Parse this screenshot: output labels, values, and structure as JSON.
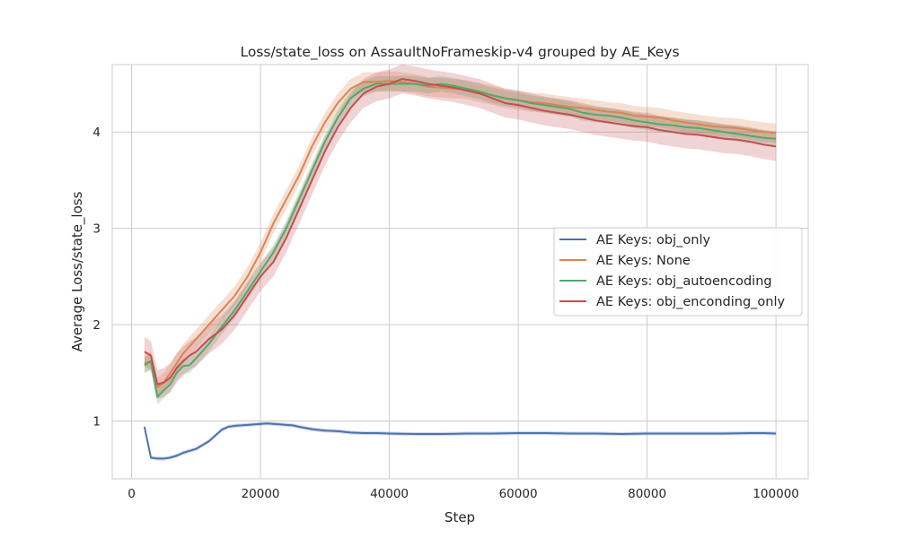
{
  "chart_data": {
    "type": "line",
    "title": "Loss/state_loss on AssaultNoFrameskip-v4 grouped by AE_Keys",
    "xlabel": "Step",
    "ylabel": "Average Loss/state_loss",
    "xlim": [
      -3000,
      105000
    ],
    "ylim": [
      0.4,
      4.7
    ],
    "xticks": [
      0,
      20000,
      40000,
      60000,
      80000,
      100000
    ],
    "xtick_labels": [
      "0",
      "20000",
      "40000",
      "60000",
      "80000",
      "100000"
    ],
    "yticks": [
      1,
      2,
      3,
      4
    ],
    "ytick_labels": [
      "1",
      "2",
      "3",
      "4"
    ],
    "grid": true,
    "legend_position": "center-right",
    "series": [
      {
        "name": "AE Keys: obj_only",
        "color": "#4c72b0",
        "band": 0.02,
        "x": [
          2000,
          3000,
          4000,
          5000,
          6000,
          7000,
          8000,
          9000,
          10000,
          12000,
          14000,
          15000,
          16000,
          18000,
          20000,
          21000,
          22000,
          23000,
          24000,
          25000,
          26000,
          28000,
          30000,
          32000,
          34000,
          36000,
          38000,
          40000,
          44000,
          48000,
          52000,
          56000,
          60000,
          64000,
          68000,
          72000,
          76000,
          80000,
          84000,
          88000,
          92000,
          96000,
          98000,
          100000
        ],
        "y": [
          0.94,
          0.62,
          0.61,
          0.61,
          0.62,
          0.64,
          0.67,
          0.69,
          0.71,
          0.79,
          0.91,
          0.94,
          0.95,
          0.96,
          0.97,
          0.975,
          0.97,
          0.965,
          0.96,
          0.955,
          0.94,
          0.915,
          0.9,
          0.895,
          0.88,
          0.875,
          0.875,
          0.87,
          0.865,
          0.865,
          0.87,
          0.87,
          0.875,
          0.875,
          0.87,
          0.87,
          0.865,
          0.87,
          0.87,
          0.87,
          0.87,
          0.875,
          0.875,
          0.87
        ]
      },
      {
        "name": "AE Keys: None",
        "color": "#dd8452",
        "band": 0.1,
        "x": [
          2000,
          3000,
          4000,
          5000,
          6000,
          8000,
          10000,
          12000,
          14000,
          16000,
          18000,
          20000,
          22000,
          24000,
          26000,
          28000,
          30000,
          32000,
          34000,
          36000,
          38000,
          40000,
          42000,
          44000,
          46000,
          48000,
          50000,
          52000,
          54000,
          56000,
          58000,
          60000,
          62000,
          64000,
          66000,
          68000,
          70000,
          72000,
          74000,
          76000,
          78000,
          80000,
          82000,
          84000,
          86000,
          88000,
          90000,
          92000,
          94000,
          96000,
          98000,
          100000
        ],
        "y": [
          1.6,
          1.62,
          1.35,
          1.4,
          1.5,
          1.7,
          1.85,
          2.0,
          2.15,
          2.3,
          2.5,
          2.75,
          3.05,
          3.3,
          3.55,
          3.85,
          4.1,
          4.3,
          4.45,
          4.52,
          4.52,
          4.53,
          4.52,
          4.5,
          4.47,
          4.46,
          4.45,
          4.44,
          4.41,
          4.38,
          4.35,
          4.33,
          4.31,
          4.3,
          4.28,
          4.26,
          4.25,
          4.23,
          4.21,
          4.2,
          4.17,
          4.16,
          4.15,
          4.12,
          4.1,
          4.08,
          4.06,
          4.05,
          4.04,
          4.02,
          4.0,
          3.99
        ]
      },
      {
        "name": "AE Keys: obj_autoencoding",
        "color": "#55a868",
        "band": 0.08,
        "x": [
          2000,
          3000,
          4000,
          5000,
          6000,
          7000,
          8000,
          9000,
          10000,
          12000,
          14000,
          16000,
          18000,
          20000,
          22000,
          24000,
          26000,
          28000,
          30000,
          32000,
          34000,
          36000,
          38000,
          40000,
          42000,
          44000,
          46000,
          48000,
          50000,
          52000,
          54000,
          56000,
          58000,
          60000,
          62000,
          64000,
          66000,
          68000,
          70000,
          72000,
          74000,
          76000,
          78000,
          80000,
          82000,
          84000,
          86000,
          88000,
          90000,
          92000,
          94000,
          96000,
          98000,
          100000
        ],
        "y": [
          1.58,
          1.62,
          1.25,
          1.32,
          1.38,
          1.5,
          1.57,
          1.58,
          1.65,
          1.8,
          1.98,
          2.15,
          2.35,
          2.55,
          2.75,
          3.0,
          3.3,
          3.6,
          3.9,
          4.15,
          4.35,
          4.45,
          4.5,
          4.5,
          4.5,
          4.5,
          4.48,
          4.5,
          4.48,
          4.45,
          4.42,
          4.38,
          4.35,
          4.33,
          4.3,
          4.28,
          4.26,
          4.24,
          4.2,
          4.18,
          4.17,
          4.15,
          4.12,
          4.1,
          4.08,
          4.07,
          4.05,
          4.04,
          4.02,
          4.0,
          3.98,
          3.96,
          3.94,
          3.93
        ]
      },
      {
        "name": "AE Keys: obj_enconding_only",
        "color": "#c44e52",
        "band": 0.15,
        "x": [
          2000,
          3000,
          4000,
          5000,
          6000,
          7000,
          8000,
          9000,
          10000,
          12000,
          14000,
          16000,
          18000,
          20000,
          22000,
          24000,
          26000,
          28000,
          30000,
          32000,
          34000,
          36000,
          38000,
          40000,
          42000,
          44000,
          46000,
          48000,
          50000,
          52000,
          54000,
          56000,
          58000,
          60000,
          62000,
          64000,
          66000,
          68000,
          70000,
          72000,
          74000,
          76000,
          78000,
          80000,
          82000,
          84000,
          86000,
          88000,
          90000,
          92000,
          94000,
          96000,
          98000,
          100000
        ],
        "y": [
          1.72,
          1.68,
          1.38,
          1.4,
          1.45,
          1.55,
          1.62,
          1.68,
          1.72,
          1.85,
          1.95,
          2.1,
          2.3,
          2.5,
          2.65,
          2.9,
          3.2,
          3.5,
          3.8,
          4.05,
          4.25,
          4.4,
          4.47,
          4.5,
          4.55,
          4.53,
          4.5,
          4.48,
          4.46,
          4.43,
          4.4,
          4.35,
          4.3,
          4.28,
          4.25,
          4.22,
          4.2,
          4.18,
          4.15,
          4.12,
          4.1,
          4.08,
          4.06,
          4.05,
          4.02,
          4.0,
          3.98,
          3.97,
          3.95,
          3.93,
          3.92,
          3.9,
          3.87,
          3.85
        ]
      }
    ]
  }
}
